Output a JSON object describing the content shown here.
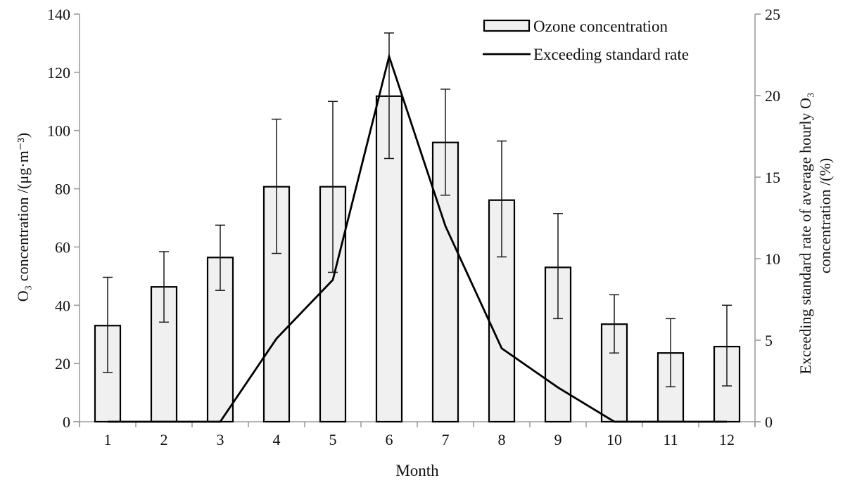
{
  "chart_data": {
    "type": "combo-bar-line",
    "title": "",
    "categories": [
      "1",
      "2",
      "3",
      "4",
      "5",
      "6",
      "7",
      "8",
      "9",
      "10",
      "11",
      "12"
    ],
    "xlabel": "Month",
    "left_axis": {
      "label": "O₃  concentration /(μg·m⁻³)",
      "ticks": [
        0,
        20,
        40,
        60,
        80,
        100,
        120,
        140
      ],
      "range": [
        0,
        140
      ]
    },
    "right_axis": {
      "label_lines": [
        "Exceeding standard rate of average hourly O₃",
        "concentration /(%)"
      ],
      "ticks": [
        0,
        5,
        10,
        15,
        20,
        25
      ],
      "range": [
        0,
        25
      ]
    },
    "grid": false,
    "legend_position": "top-right-inside",
    "series": [
      {
        "name": "Ozone concentration",
        "type": "bar",
        "axis": "left",
        "values": [
          33.0,
          46.3,
          56.4,
          80.7,
          80.7,
          111.8,
          95.9,
          76.1,
          53.0,
          33.5,
          23.6,
          25.8
        ],
        "error_upper": [
          49.6,
          58.4,
          67.5,
          103.9,
          110.0,
          133.5,
          114.2,
          96.4,
          71.5,
          43.6,
          35.4,
          40.0
        ],
        "error_lower": [
          16.9,
          34.2,
          45.1,
          57.8,
          51.3,
          90.4,
          77.8,
          56.6,
          35.4,
          23.6,
          12.0,
          12.3
        ]
      },
      {
        "name": "Exceeding standard rate",
        "type": "line",
        "axis": "right",
        "values": [
          0,
          0,
          0,
          5.1,
          8.7,
          22.4,
          12.0,
          4.5,
          2.1,
          0,
          0,
          0
        ]
      }
    ],
    "colors": {
      "bar_fill": "#f0f0f0",
      "bar_stroke": "#000000",
      "line": "#000000",
      "axis": "#9c9c9c",
      "text": "#111111"
    }
  }
}
